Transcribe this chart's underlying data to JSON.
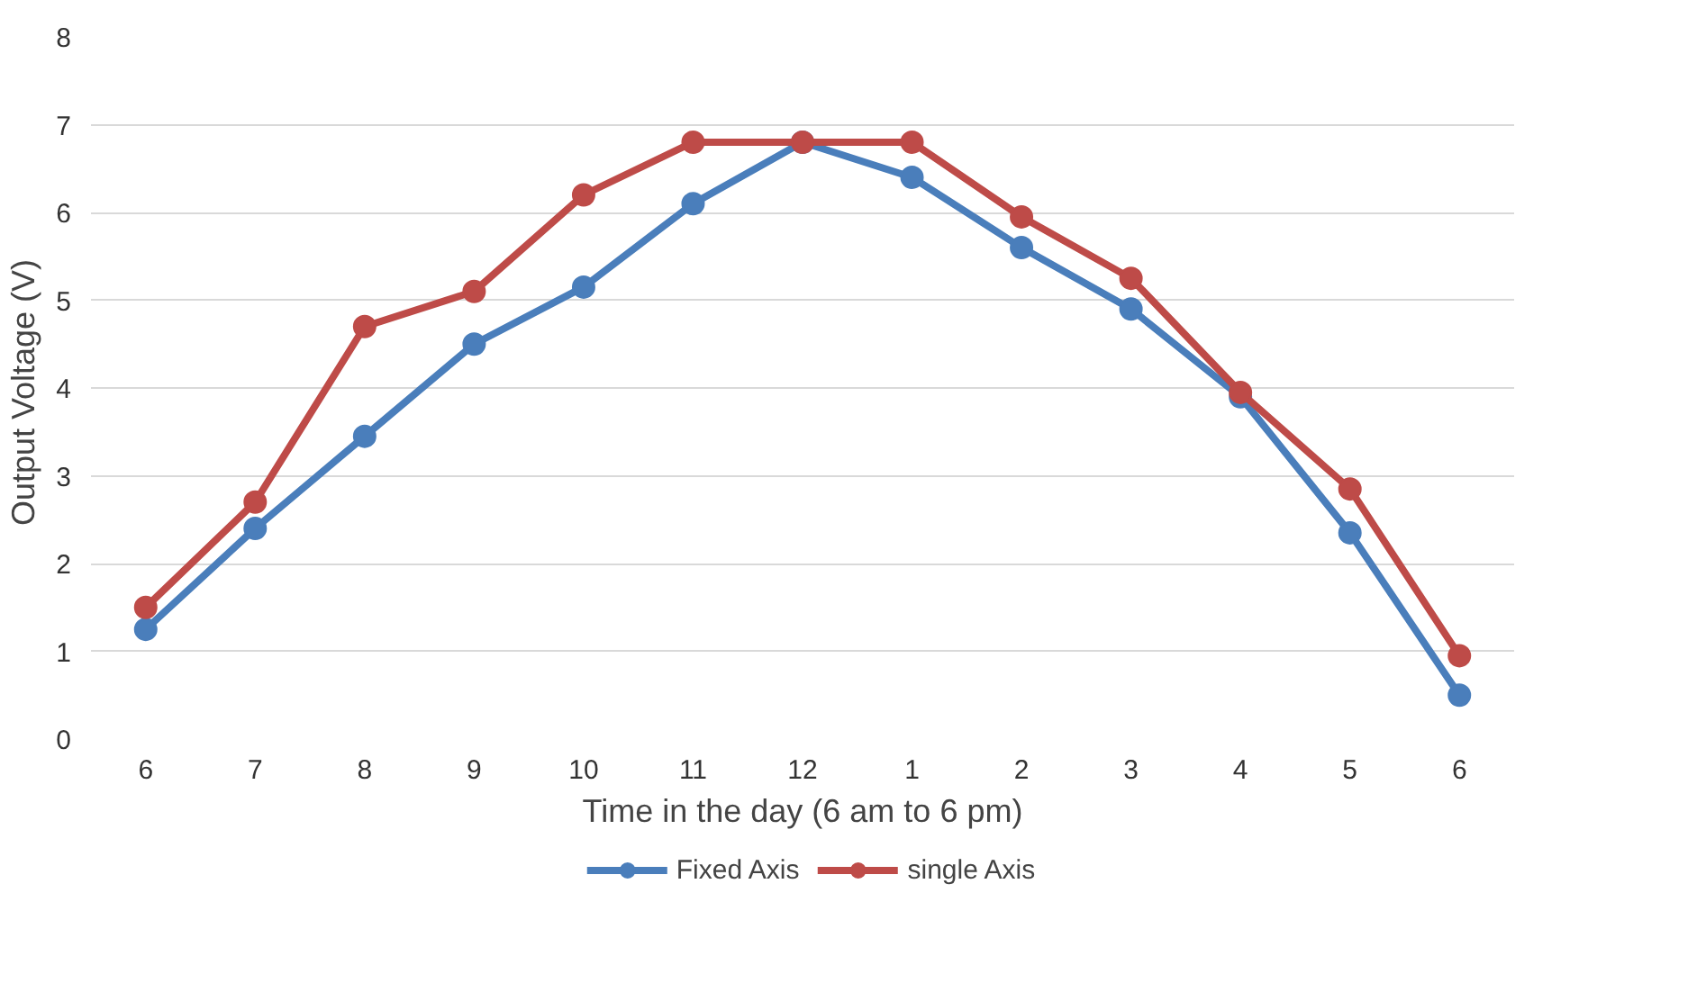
{
  "chart_data": {
    "type": "line",
    "xlabel": "Time in the day (6 am to 6 pm)",
    "ylabel": "Output Voltage  (V)",
    "categories": [
      "6",
      "7",
      "8",
      "9",
      "10",
      "11",
      "12",
      "1",
      "2",
      "3",
      "4",
      "5",
      "6"
    ],
    "series": [
      {
        "name": "Fixed Axis",
        "color": "#4a7ebb",
        "values": [
          1.25,
          2.4,
          3.45,
          4.5,
          5.15,
          6.1,
          6.8,
          6.4,
          5.6,
          4.9,
          3.9,
          2.35,
          0.5
        ]
      },
      {
        "name": "single Axis",
        "color": "#be4b48",
        "values": [
          1.5,
          2.7,
          4.7,
          5.1,
          6.2,
          6.8,
          6.8,
          6.8,
          5.95,
          5.25,
          3.95,
          2.85,
          0.95
        ]
      }
    ],
    "ylim": [
      0,
      8
    ],
    "yticks": [
      0,
      1,
      2,
      3,
      4,
      5,
      6,
      7,
      8
    ],
    "grid": "y",
    "legend": "bottom",
    "marker": "circle",
    "line_style": "solid"
  }
}
